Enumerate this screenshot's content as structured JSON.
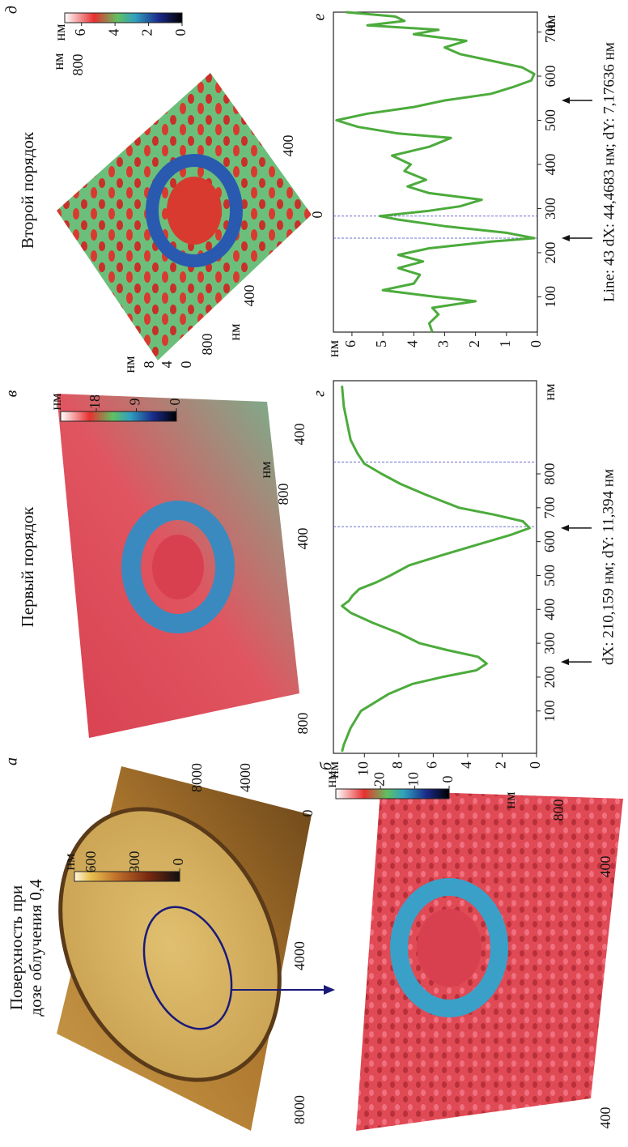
{
  "figure": {
    "panels": [
      {
        "label": "а",
        "title": [
          "Поверхность при",
          "дозе облучения 0,4"
        ],
        "colorbar": {
          "unit": "нм",
          "ticks": [
            600,
            300,
            0
          ],
          "range": [
            0,
            720
          ]
        },
        "axis_labels": [
          "8000",
          "4000",
          "0",
          "4000",
          "8000"
        ]
      },
      {
        "label": "б",
        "colorbar": {
          "unit": "нм",
          "ticks": [
            20,
            10,
            0
          ],
          "range": [
            0,
            33
          ]
        },
        "axis_labels": [
          "400",
          "400",
          "800",
          "нм"
        ]
      },
      {
        "label": "в",
        "title": [
          "Первый порядок"
        ],
        "colorbar": {
          "unit": "нм",
          "ticks": [
            18,
            9,
            0
          ],
          "range": [
            0,
            26
          ]
        },
        "axis_labels": [
          "800",
          "400",
          "800",
          "нм",
          "400"
        ]
      },
      {
        "label": "д",
        "title": [
          "Второй порядок"
        ],
        "colorbar": {
          "unit": "нм",
          "ticks": [
            6,
            4,
            2,
            0
          ],
          "range": [
            0,
            7
          ]
        },
        "axis_labels": [
          "нм",
          "8",
          "4",
          "0",
          "800",
          "нм",
          "400",
          "0",
          "400",
          "800",
          "нм"
        ]
      }
    ]
  },
  "chart_data": [
    {
      "type": "line",
      "label": "г",
      "color": "#4cab3c",
      "x": [
        -20,
        0,
        50,
        100,
        150,
        180,
        200,
        220,
        240,
        260,
        280,
        300,
        330,
        360,
        390,
        410,
        425,
        440,
        460,
        480,
        500,
        530,
        560,
        590,
        620,
        640,
        660,
        680,
        700,
        720,
        740,
        770,
        800,
        830,
        860,
        900,
        950,
        1000,
        1060
      ],
      "values": [
        11.3,
        11.2,
        10.8,
        10.2,
        8.6,
        7.2,
        5.5,
        3.5,
        2.9,
        3.4,
        5.2,
        6.8,
        8.0,
        9.5,
        10.8,
        11.3,
        10.9,
        10.7,
        10.3,
        9.3,
        8.5,
        7.4,
        5.5,
        3.5,
        1.5,
        0.4,
        0.8,
        2.5,
        4.5,
        5.5,
        6.5,
        7.9,
        9.0,
        10.0,
        10.4,
        10.8,
        11.0,
        11.2,
        11.3
      ],
      "xlim": [
        -25,
        1075
      ],
      "xticks": [
        100,
        200,
        300,
        400,
        500,
        600,
        700,
        800
      ],
      "x_unit": "нм",
      "ylim": [
        0,
        11.8
      ],
      "yticks": [
        0,
        2,
        4,
        6,
        8,
        10
      ],
      "y_unit": "нм",
      "cursors": [
        644,
        835
      ],
      "arrows": [
        245,
        640
      ],
      "caption": "dX: 210,159 нм; dY: 11,394 нм"
    },
    {
      "type": "line",
      "label": "е",
      "color": "#4cab3c",
      "x": [
        20,
        40,
        60,
        75,
        90,
        100,
        115,
        130,
        150,
        165,
        180,
        195,
        210,
        225,
        233,
        245,
        260,
        275,
        283,
        295,
        305,
        320,
        335,
        350,
        365,
        385,
        400,
        420,
        440,
        460,
        470,
        485,
        500,
        515,
        530,
        545,
        560,
        575,
        590,
        605,
        620,
        635,
        650,
        665,
        680,
        695,
        705,
        715,
        725,
        735,
        745
      ],
      "values": [
        3.4,
        3.5,
        3.2,
        3.4,
        2.0,
        3.3,
        5.0,
        4.0,
        3.8,
        4.5,
        3.7,
        4.5,
        3.5,
        1.5,
        0.1,
        1.0,
        3.0,
        4.5,
        5.1,
        3.5,
        2.5,
        1.8,
        3.5,
        4.2,
        3.6,
        4.3,
        4.1,
        4.7,
        3.5,
        2.8,
        4.5,
        5.8,
        6.5,
        5.5,
        4.0,
        3.0,
        1.5,
        0.8,
        0.2,
        0.1,
        0.5,
        1.5,
        2.5,
        3.0,
        2.3,
        4.0,
        3.2,
        5.5,
        4.3,
        4.6,
        6.2
      ],
      "xlim": [
        20,
        745
      ],
      "xticks": [
        100,
        200,
        300,
        400,
        500,
        600,
        700
      ],
      "x_unit": "нм",
      "ylim": [
        0,
        6.6
      ],
      "yticks": [
        0,
        1,
        2,
        3,
        4,
        5,
        6
      ],
      "y_unit": "нм",
      "cursors": [
        233,
        283
      ],
      "arrows": [
        233,
        545
      ],
      "caption": "Line: 43 dX: 44,4683 нм; dY: 7,17636 нм"
    }
  ]
}
